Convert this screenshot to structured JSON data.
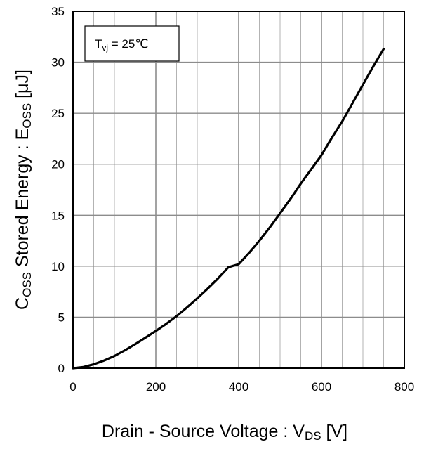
{
  "chart_data": {
    "type": "line",
    "xlabel": {
      "main": "Drain - Source Voltage : V",
      "sub": "DS",
      "unit": " [V]"
    },
    "ylabel": {
      "pre": "C",
      "sub1": "OSS",
      "mid": " Stored Energy : E",
      "sub2": "OSS",
      "unit": " [μJ]"
    },
    "xlim": [
      0,
      800
    ],
    "ylim": [
      0,
      35
    ],
    "x_ticks": [
      "0",
      "200",
      "400",
      "600",
      "800"
    ],
    "y_ticks": [
      "0",
      "5",
      "10",
      "15",
      "20",
      "25",
      "30",
      "35"
    ],
    "x_tick_values": [
      0,
      200,
      400,
      600,
      800
    ],
    "y_tick_values": [
      0,
      5,
      10,
      15,
      20,
      25,
      30,
      35
    ],
    "grid": true,
    "minor_grid_x_step": 50,
    "major_grid_x_step": 200,
    "grid_y_step": 5,
    "annotation": {
      "pre": "T",
      "sub": "vj",
      "post": " = 25℃"
    },
    "line_color": "#000000",
    "grid_color": "#b3b3b3",
    "series": [
      {
        "x": [
          0,
          25,
          50,
          75,
          100,
          125,
          150,
          175,
          200,
          225,
          250,
          275,
          300,
          325,
          350,
          375,
          400,
          425,
          450,
          475,
          500,
          525,
          550,
          575,
          600,
          625,
          650,
          675,
          700,
          725,
          750
        ],
        "values": [
          0,
          0.12,
          0.38,
          0.75,
          1.2,
          1.75,
          2.35,
          3.0,
          3.65,
          4.35,
          5.1,
          5.95,
          6.85,
          7.8,
          8.8,
          9.9,
          10.2,
          11.3,
          12.5,
          13.8,
          15.2,
          16.6,
          18.1,
          19.5,
          20.9,
          22.6,
          24.2,
          26.0,
          27.8,
          29.6,
          31.3
        ]
      }
    ]
  }
}
